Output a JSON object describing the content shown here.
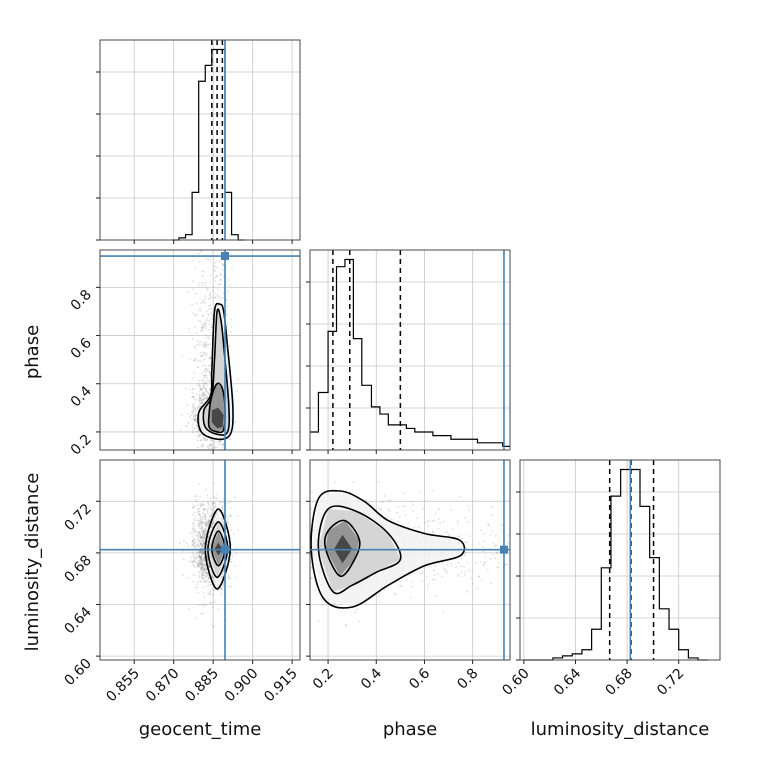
{
  "chart_data": {
    "type": "corner",
    "parameters": [
      "geocent_time",
      "phase",
      "luminosity_distance"
    ],
    "axis_labels": {
      "geocent_time": "geocent_time",
      "phase": "phase",
      "luminosity_distance": "luminosity_distance"
    },
    "ranges": {
      "geocent_time": [
        0.842,
        0.918
      ],
      "phase": [
        0.125,
        0.955
      ],
      "luminosity_distance": [
        0.597,
        0.752
      ]
    },
    "ticks": {
      "geocent_time": [
        "0.855",
        "0.870",
        "0.885",
        "0.900",
        "0.915"
      ],
      "phase": [
        "0.2",
        "0.4",
        "0.6",
        "0.8"
      ],
      "luminosity_distance": [
        "0.60",
        "0.64",
        "0.68",
        "0.72"
      ]
    },
    "truths": {
      "geocent_time": 0.8895,
      "phase": 0.93,
      "luminosity_distance": 0.6825
    },
    "quantiles": {
      "geocent_time": [
        0.8845,
        0.8865,
        0.8885
      ],
      "phase": [
        0.22,
        0.29,
        0.5
      ],
      "luminosity_distance": [
        0.6665,
        0.683,
        0.7005
      ]
    },
    "histograms": {
      "geocent_time": {
        "edges": [
          0.8695,
          0.872,
          0.8745,
          0.877,
          0.8795,
          0.882,
          0.8845,
          0.887,
          0.8895,
          0.892,
          0.8945,
          0.897
        ],
        "counts": [
          0,
          2,
          5,
          45,
          150,
          165,
          180,
          180,
          45,
          5,
          0
        ]
      },
      "phase": {
        "edges": [
          0.125,
          0.16,
          0.2,
          0.235,
          0.27,
          0.305,
          0.34,
          0.38,
          0.415,
          0.45,
          0.49,
          0.525,
          0.56,
          0.6,
          0.635,
          0.675,
          0.71,
          0.745,
          0.78,
          0.82,
          0.855,
          0.89,
          0.925,
          0.955
        ],
        "counts": [
          5,
          16,
          33,
          51,
          53,
          31,
          18,
          12,
          10,
          7,
          7,
          6,
          5,
          5,
          4,
          4,
          3,
          3,
          3,
          2,
          2,
          2,
          1
        ]
      },
      "luminosity_distance": {
        "edges": [
          0.6,
          0.6075,
          0.615,
          0.6225,
          0.63,
          0.6375,
          0.645,
          0.6525,
          0.66,
          0.6675,
          0.675,
          0.6825,
          0.69,
          0.6975,
          0.705,
          0.7125,
          0.72,
          0.7275,
          0.735,
          0.7425
        ],
        "counts": [
          0,
          0,
          0,
          1,
          2,
          3,
          5,
          15,
          45,
          80,
          93,
          93,
          75,
          50,
          25,
          15,
          5,
          1,
          0
        ]
      }
    },
    "contours_2d": {
      "phase_vs_geocent_time": [
        [
          [
            0.8845,
            0.24
          ],
          [
            0.8865,
            0.215
          ],
          [
            0.8885,
            0.22
          ],
          [
            0.889,
            0.27
          ],
          [
            0.887,
            0.3
          ],
          [
            0.8845,
            0.29
          ]
        ],
        [
          [
            0.8835,
            0.22
          ],
          [
            0.8865,
            0.2
          ],
          [
            0.889,
            0.21
          ],
          [
            0.8895,
            0.3
          ],
          [
            0.8885,
            0.38
          ],
          [
            0.8865,
            0.4
          ],
          [
            0.8845,
            0.35
          ],
          [
            0.8835,
            0.28
          ]
        ],
        [
          [
            0.882,
            0.22
          ],
          [
            0.8865,
            0.19
          ],
          [
            0.8905,
            0.2
          ],
          [
            0.891,
            0.3
          ],
          [
            0.8895,
            0.5
          ],
          [
            0.888,
            0.66
          ],
          [
            0.8865,
            0.7
          ],
          [
            0.8855,
            0.5
          ],
          [
            0.8845,
            0.35
          ],
          [
            0.8815,
            0.29
          ]
        ],
        [
          [
            0.8805,
            0.2
          ],
          [
            0.8865,
            0.17
          ],
          [
            0.8915,
            0.19
          ],
          [
            0.8925,
            0.3
          ],
          [
            0.8905,
            0.55
          ],
          [
            0.889,
            0.7
          ],
          [
            0.8875,
            0.73
          ],
          [
            0.8855,
            0.7
          ],
          [
            0.8845,
            0.45
          ],
          [
            0.884,
            0.35
          ],
          [
            0.8795,
            0.28
          ]
        ]
      ],
      "luminosity_distance_vs_geocent_time": [
        [
          [
            0.8855,
            0.683
          ],
          [
            0.887,
            0.678
          ],
          [
            0.8885,
            0.683
          ],
          [
            0.887,
            0.688
          ]
        ],
        [
          [
            0.8845,
            0.683
          ],
          [
            0.887,
            0.67
          ],
          [
            0.8895,
            0.683
          ],
          [
            0.887,
            0.697
          ]
        ],
        [
          [
            0.883,
            0.683
          ],
          [
            0.8865,
            0.661
          ],
          [
            0.8905,
            0.683
          ],
          [
            0.887,
            0.704
          ]
        ],
        [
          [
            0.882,
            0.683
          ],
          [
            0.8865,
            0.652
          ],
          [
            0.8915,
            0.683
          ],
          [
            0.887,
            0.714
          ]
        ]
      ],
      "luminosity_distance_vs_phase": [
        [
          [
            0.225,
            0.683
          ],
          [
            0.26,
            0.672
          ],
          [
            0.3,
            0.683
          ],
          [
            0.26,
            0.694
          ]
        ],
        [
          [
            0.19,
            0.683
          ],
          [
            0.25,
            0.662
          ],
          [
            0.31,
            0.675
          ],
          [
            0.33,
            0.69
          ],
          [
            0.27,
            0.705
          ],
          [
            0.2,
            0.697
          ]
        ],
        [
          [
            0.16,
            0.683
          ],
          [
            0.22,
            0.65
          ],
          [
            0.3,
            0.655
          ],
          [
            0.4,
            0.665
          ],
          [
            0.5,
            0.675
          ],
          [
            0.45,
            0.695
          ],
          [
            0.32,
            0.712
          ],
          [
            0.2,
            0.714
          ]
        ],
        [
          [
            0.13,
            0.683
          ],
          [
            0.18,
            0.645
          ],
          [
            0.3,
            0.638
          ],
          [
            0.45,
            0.655
          ],
          [
            0.6,
            0.67
          ],
          [
            0.75,
            0.678
          ],
          [
            0.745,
            0.69
          ],
          [
            0.6,
            0.695
          ],
          [
            0.45,
            0.705
          ],
          [
            0.35,
            0.72
          ],
          [
            0.25,
            0.728
          ],
          [
            0.16,
            0.722
          ]
        ]
      ]
    },
    "grid": true,
    "colors": {
      "truth": "#4682b4",
      "line": "#000000",
      "scatter": "#8c8c8c",
      "grid": "#c8c8c8"
    }
  }
}
